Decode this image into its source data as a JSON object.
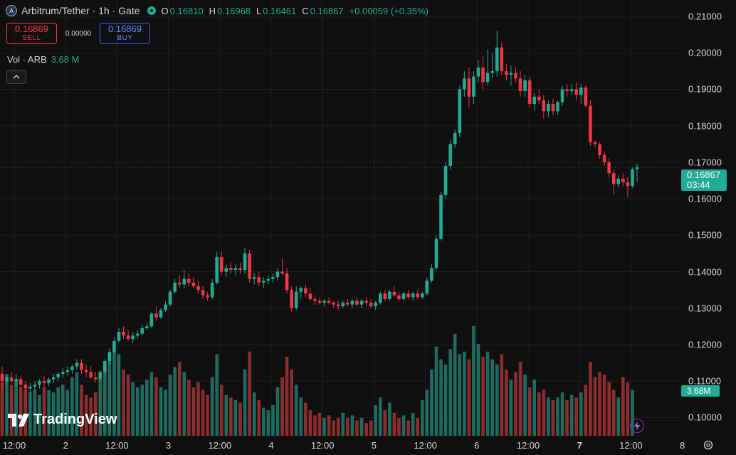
{
  "header": {
    "symbol": "Arbitrum/Tether · 1h · Gate",
    "logo_letter": "A",
    "ohlc": {
      "o_label": "O",
      "o": "0.16810",
      "h_label": "H",
      "h": "0.16968",
      "l_label": "L",
      "l": "0.16461",
      "c_label": "C",
      "c": "0.16867",
      "change": "+0.00059 (+0.35%)"
    }
  },
  "trade": {
    "sell_price": "0.16869",
    "sell_label": "SELL",
    "spread": "0.00000",
    "buy_price": "0.16869",
    "buy_label": "BUY"
  },
  "volume_legend": {
    "label": "Vol · ARB",
    "value": "3.68 M"
  },
  "collapse_icon": "^",
  "price_axis": {
    "ticks": [
      "0.21000",
      "0.20000",
      "0.19000",
      "0.18000",
      "0.17000",
      "0.16000",
      "0.15000",
      "0.14000",
      "0.13000",
      "0.12000",
      "0.11000",
      "0.10000"
    ],
    "last_price": "0.16867",
    "countdown": "03:44",
    "volume_tag": "3.68M"
  },
  "time_axis": {
    "labels": [
      "12:00",
      "2",
      "12:00",
      "3",
      "12:00",
      "4",
      "12:00",
      "5",
      "12:00",
      "6",
      "12:00",
      "7",
      "12:00",
      "8"
    ],
    "bold": [
      "7"
    ]
  },
  "branding": {
    "logo_text": "TradingView"
  },
  "colors": {
    "up": "#22ab94",
    "down": "#f23645",
    "vol_up": "#1e6b5f",
    "vol_down": "#8c2d2e",
    "background": "#0f0f0f"
  },
  "icons": {
    "settings": "gear-icon",
    "lightning": "lightning-icon",
    "collapse": "chevron-up-icon"
  },
  "chart_data": {
    "type": "candlestick",
    "interval": "1h",
    "ylim": [
      0.095,
      0.2145
    ],
    "grid": true,
    "candles": [
      [
        0.112,
        0.114,
        0.1085,
        0.11
      ],
      [
        0.11,
        0.112,
        0.109,
        0.111
      ],
      [
        0.111,
        0.1125,
        0.1095,
        0.11
      ],
      [
        0.11,
        0.112,
        0.1085,
        0.1105
      ],
      [
        0.1105,
        0.1115,
        0.108,
        0.109
      ],
      [
        0.109,
        0.11,
        0.107,
        0.108
      ],
      [
        0.108,
        0.1095,
        0.1065,
        0.1085
      ],
      [
        0.1085,
        0.11,
        0.1075,
        0.109
      ],
      [
        0.109,
        0.1105,
        0.108,
        0.11
      ],
      [
        0.11,
        0.1115,
        0.1085,
        0.1095
      ],
      [
        0.1095,
        0.111,
        0.1085,
        0.1105
      ],
      [
        0.1105,
        0.112,
        0.1095,
        0.111
      ],
      [
        0.111,
        0.1125,
        0.11,
        0.112
      ],
      [
        0.112,
        0.1135,
        0.111,
        0.1125
      ],
      [
        0.1125,
        0.114,
        0.1115,
        0.113
      ],
      [
        0.113,
        0.1145,
        0.112,
        0.114
      ],
      [
        0.114,
        0.116,
        0.113,
        0.115
      ],
      [
        0.115,
        0.116,
        0.112,
        0.113
      ],
      [
        0.113,
        0.1145,
        0.111,
        0.1125
      ],
      [
        0.1125,
        0.114,
        0.1105,
        0.111
      ],
      [
        0.111,
        0.1125,
        0.1095,
        0.1105
      ],
      [
        0.1105,
        0.113,
        0.11,
        0.1125
      ],
      [
        0.1125,
        0.116,
        0.112,
        0.1155
      ],
      [
        0.1155,
        0.119,
        0.1145,
        0.118
      ],
      [
        0.118,
        0.122,
        0.1175,
        0.121
      ],
      [
        0.121,
        0.1245,
        0.1205,
        0.1235
      ],
      [
        0.1235,
        0.125,
        0.1215,
        0.1225
      ],
      [
        0.1225,
        0.124,
        0.121,
        0.1215
      ],
      [
        0.1215,
        0.1235,
        0.1205,
        0.1225
      ],
      [
        0.1225,
        0.124,
        0.1215,
        0.123
      ],
      [
        0.123,
        0.1255,
        0.1225,
        0.1245
      ],
      [
        0.1245,
        0.126,
        0.124,
        0.125
      ],
      [
        0.125,
        0.129,
        0.1245,
        0.1285
      ],
      [
        0.1285,
        0.1305,
        0.1265,
        0.1275
      ],
      [
        0.1275,
        0.13,
        0.127,
        0.1295
      ],
      [
        0.1295,
        0.132,
        0.129,
        0.131
      ],
      [
        0.131,
        0.135,
        0.1305,
        0.1345
      ],
      [
        0.1345,
        0.138,
        0.134,
        0.137
      ],
      [
        0.137,
        0.139,
        0.1355,
        0.1365
      ],
      [
        0.1365,
        0.1405,
        0.1355,
        0.138
      ],
      [
        0.138,
        0.1395,
        0.136,
        0.137
      ],
      [
        0.137,
        0.1385,
        0.1355,
        0.136
      ],
      [
        0.136,
        0.1375,
        0.134,
        0.135
      ],
      [
        0.135,
        0.136,
        0.1325,
        0.1335
      ],
      [
        0.1335,
        0.1345,
        0.132,
        0.133
      ],
      [
        0.133,
        0.138,
        0.1325,
        0.137
      ],
      [
        0.137,
        0.1455,
        0.1365,
        0.144
      ],
      [
        0.144,
        0.1455,
        0.139,
        0.14
      ],
      [
        0.14,
        0.142,
        0.1385,
        0.141
      ],
      [
        0.141,
        0.1425,
        0.1395,
        0.1405
      ],
      [
        0.1405,
        0.142,
        0.139,
        0.141
      ],
      [
        0.141,
        0.1425,
        0.1395,
        0.1405
      ],
      [
        0.1405,
        0.1465,
        0.1395,
        0.145
      ],
      [
        0.145,
        0.146,
        0.137,
        0.138
      ],
      [
        0.138,
        0.1395,
        0.1365,
        0.1385
      ],
      [
        0.1385,
        0.14,
        0.136,
        0.137
      ],
      [
        0.137,
        0.1385,
        0.1355,
        0.1375
      ],
      [
        0.1375,
        0.139,
        0.1365,
        0.138
      ],
      [
        0.138,
        0.1395,
        0.137,
        0.1385
      ],
      [
        0.1385,
        0.141,
        0.1375,
        0.14
      ],
      [
        0.14,
        0.1435,
        0.139,
        0.1395
      ],
      [
        0.1395,
        0.141,
        0.134,
        0.135
      ],
      [
        0.135,
        0.136,
        0.129,
        0.13
      ],
      [
        0.13,
        0.136,
        0.1295,
        0.1345
      ],
      [
        0.1345,
        0.136,
        0.1325,
        0.1355
      ],
      [
        0.1355,
        0.1365,
        0.133,
        0.134
      ],
      [
        0.134,
        0.1355,
        0.132,
        0.1325
      ],
      [
        0.1325,
        0.1335,
        0.131,
        0.132
      ],
      [
        0.132,
        0.133,
        0.131,
        0.1315
      ],
      [
        0.1315,
        0.1325,
        0.1305,
        0.132
      ],
      [
        0.132,
        0.133,
        0.131,
        0.1315
      ],
      [
        0.1315,
        0.132,
        0.13,
        0.131
      ],
      [
        0.131,
        0.132,
        0.1295,
        0.1305
      ],
      [
        0.1305,
        0.132,
        0.13,
        0.1315
      ],
      [
        0.1315,
        0.1325,
        0.1305,
        0.131
      ],
      [
        0.131,
        0.1325,
        0.13,
        0.132
      ],
      [
        0.132,
        0.133,
        0.1305,
        0.131
      ],
      [
        0.131,
        0.1325,
        0.13,
        0.132
      ],
      [
        0.132,
        0.133,
        0.1305,
        0.1315
      ],
      [
        0.1315,
        0.1325,
        0.13,
        0.1305
      ],
      [
        0.1305,
        0.132,
        0.1295,
        0.1315
      ],
      [
        0.1315,
        0.1345,
        0.131,
        0.134
      ],
      [
        0.134,
        0.135,
        0.132,
        0.1325
      ],
      [
        0.1325,
        0.135,
        0.132,
        0.1345
      ],
      [
        0.1345,
        0.136,
        0.133,
        0.1335
      ],
      [
        0.1335,
        0.1345,
        0.132,
        0.1325
      ],
      [
        0.1325,
        0.1345,
        0.132,
        0.134
      ],
      [
        0.134,
        0.135,
        0.1325,
        0.133
      ],
      [
        0.133,
        0.1345,
        0.132,
        0.134
      ],
      [
        0.134,
        0.135,
        0.1325,
        0.133
      ],
      [
        0.133,
        0.1345,
        0.1325,
        0.134
      ],
      [
        0.134,
        0.1385,
        0.1335,
        0.1375
      ],
      [
        0.1375,
        0.142,
        0.137,
        0.141
      ],
      [
        0.141,
        0.15,
        0.1405,
        0.149
      ],
      [
        0.149,
        0.162,
        0.1485,
        0.161
      ],
      [
        0.161,
        0.17,
        0.16,
        0.169
      ],
      [
        0.169,
        0.176,
        0.168,
        0.175
      ],
      [
        0.175,
        0.179,
        0.174,
        0.178
      ],
      [
        0.178,
        0.191,
        0.177,
        0.19
      ],
      [
        0.19,
        0.195,
        0.188,
        0.193
      ],
      [
        0.193,
        0.196,
        0.185,
        0.188
      ],
      [
        0.188,
        0.195,
        0.186,
        0.1935
      ],
      [
        0.1935,
        0.198,
        0.192,
        0.196
      ],
      [
        0.196,
        0.199,
        0.19,
        0.192
      ],
      [
        0.192,
        0.201,
        0.191,
        0.1945
      ],
      [
        0.1945,
        0.2,
        0.193,
        0.195
      ],
      [
        0.195,
        0.206,
        0.1935,
        0.2015
      ],
      [
        0.2015,
        0.203,
        0.194,
        0.195
      ],
      [
        0.195,
        0.197,
        0.1925,
        0.194
      ],
      [
        0.194,
        0.1965,
        0.191,
        0.1945
      ],
      [
        0.1945,
        0.196,
        0.192,
        0.193
      ],
      [
        0.193,
        0.195,
        0.188,
        0.1895
      ],
      [
        0.1895,
        0.194,
        0.188,
        0.1925
      ],
      [
        0.1925,
        0.1935,
        0.185,
        0.186
      ],
      [
        0.186,
        0.189,
        0.184,
        0.188
      ],
      [
        0.188,
        0.19,
        0.186,
        0.187
      ],
      [
        0.187,
        0.1885,
        0.182,
        0.184
      ],
      [
        0.184,
        0.187,
        0.1825,
        0.186
      ],
      [
        0.186,
        0.1875,
        0.183,
        0.184
      ],
      [
        0.184,
        0.187,
        0.183,
        0.1865
      ],
      [
        0.1865,
        0.191,
        0.1855,
        0.19
      ],
      [
        0.19,
        0.1915,
        0.188,
        0.1895
      ],
      [
        0.1895,
        0.1915,
        0.1885,
        0.19
      ],
      [
        0.19,
        0.192,
        0.187,
        0.1885
      ],
      [
        0.1885,
        0.1915,
        0.186,
        0.1905
      ],
      [
        0.1905,
        0.191,
        0.185,
        0.1855
      ],
      [
        0.1855,
        0.187,
        0.1745,
        0.1755
      ],
      [
        0.1755,
        0.176,
        0.174,
        0.175
      ],
      [
        0.175,
        0.1755,
        0.171,
        0.172
      ],
      [
        0.172,
        0.173,
        0.169,
        0.17
      ],
      [
        0.17,
        0.171,
        0.166,
        0.167
      ],
      [
        0.167,
        0.168,
        0.161,
        0.164
      ],
      [
        0.164,
        0.1665,
        0.163,
        0.1655
      ],
      [
        0.1655,
        0.167,
        0.1635,
        0.1645
      ],
      [
        0.1645,
        0.166,
        0.1605,
        0.1635
      ],
      [
        0.1635,
        0.1685,
        0.163,
        0.1681
      ],
      [
        0.1681,
        0.1697,
        0.1646,
        0.1687
      ]
    ],
    "volumes": [
      2.1,
      2.4,
      2.0,
      2.2,
      1.9,
      1.8,
      1.7,
      1.8,
      1.6,
      1.9,
      1.8,
      1.7,
      1.9,
      2.0,
      1.8,
      2.3,
      2.5,
      2.0,
      1.6,
      1.5,
      1.7,
      2.2,
      2.8,
      3.1,
      3.3,
      3.2,
      2.6,
      2.4,
      2.1,
      1.9,
      2.0,
      2.2,
      2.5,
      2.3,
      1.9,
      1.8,
      2.4,
      2.7,
      2.9,
      2.5,
      2.2,
      1.9,
      2.1,
      1.8,
      1.6,
      2.3,
      3.2,
      2.0,
      1.6,
      1.5,
      1.4,
      1.3,
      2.6,
      3.3,
      1.7,
      1.4,
      1.1,
      1.0,
      1.2,
      1.9,
      2.3,
      3.1,
      2.6,
      2.0,
      1.5,
      1.3,
      1.0,
      0.8,
      0.9,
      0.7,
      0.8,
      0.6,
      0.7,
      0.9,
      0.7,
      0.8,
      0.6,
      0.7,
      0.5,
      0.6,
      1.2,
      1.5,
      1.0,
      1.3,
      0.9,
      0.7,
      0.8,
      0.6,
      0.9,
      0.7,
      1.4,
      1.8,
      2.6,
      3.5,
      3.0,
      2.8,
      3.4,
      4.0,
      3.2,
      3.3,
      3.0,
      4.3,
      3.6,
      3.1,
      3.3,
      3.0,
      2.8,
      3.2,
      2.6,
      2.2,
      2.5,
      2.9,
      2.4,
      1.9,
      2.2,
      1.7,
      1.8,
      1.5,
      1.4,
      1.5,
      1.7,
      1.4,
      1.6,
      1.5,
      1.7,
      2.0,
      2.9,
      2.3,
      2.5,
      2.4,
      2.1,
      1.8,
      1.5,
      2.3,
      2.1,
      1.8
    ]
  }
}
